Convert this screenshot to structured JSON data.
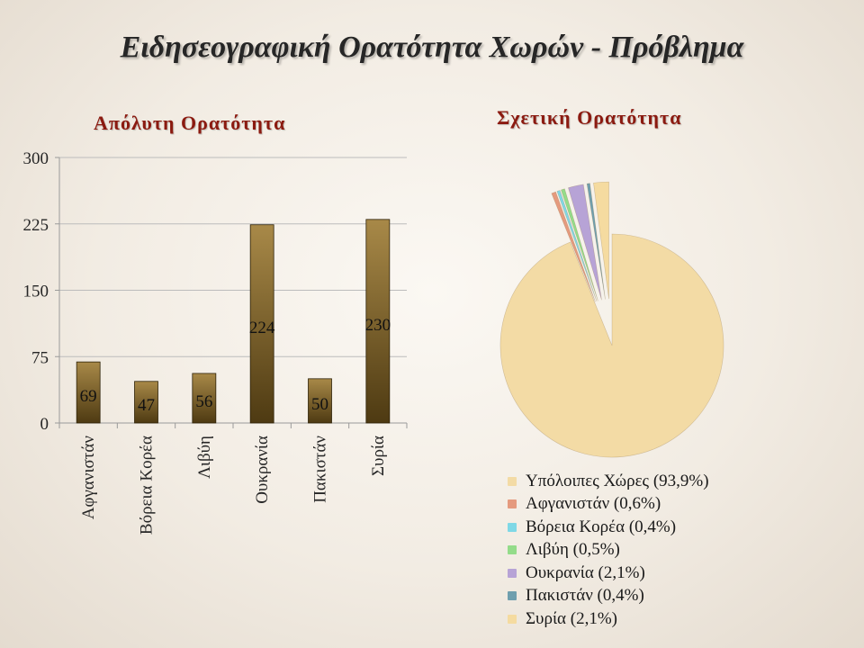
{
  "page": {
    "title": "Ειδησεογραφική Ορατότητα Χωρών - Πρόβλημα"
  },
  "chart_data": [
    {
      "type": "bar",
      "title": "Απόλυτη Ορατότητα",
      "categories": [
        "Αφγανιστάν",
        "Βόρεια Κορέα",
        "Λιβύη",
        "Ουκρανία",
        "Πακιστάν",
        "Συρία"
      ],
      "values": [
        69,
        47,
        56,
        224,
        50,
        230
      ],
      "ylim": [
        0,
        300
      ],
      "yticks": [
        "0",
        "75",
        "150",
        "225",
        "300"
      ],
      "ytick_values": [
        0,
        75,
        150,
        225,
        300
      ],
      "grid": true,
      "colors": {
        "bar_top": "#a88948",
        "bar_bottom": "#4e3a12",
        "grid": "#bcbcbc",
        "axis": "#9a9a9a"
      }
    },
    {
      "type": "pie",
      "title": "Σχετική Ορατότητα",
      "slices": [
        {
          "label": "Υπόλοιπες Χώρες (93,9%)",
          "value": 93.9,
          "color": "#f3dba5"
        },
        {
          "label": "Αφγανιστάν (0,6%)",
          "value": 0.6,
          "color": "#e59a7e"
        },
        {
          "label": "Βόρεια Κορέα (0,4%)",
          "value": 0.4,
          "color": "#7fd8e6"
        },
        {
          "label": "Λιβύη (0,5%)",
          "value": 0.5,
          "color": "#94dc8a"
        },
        {
          "label": "Ουκρανία (2,1%)",
          "value": 2.1,
          "color": "#b7a3d6"
        },
        {
          "label": "Πακιστάν (0,4%)",
          "value": 0.4,
          "color": "#6f9fae"
        },
        {
          "label": "Συρία (2,1%)",
          "value": 2.1,
          "color": "#f5dba0"
        }
      ],
      "legend_position": "bottom"
    }
  ]
}
